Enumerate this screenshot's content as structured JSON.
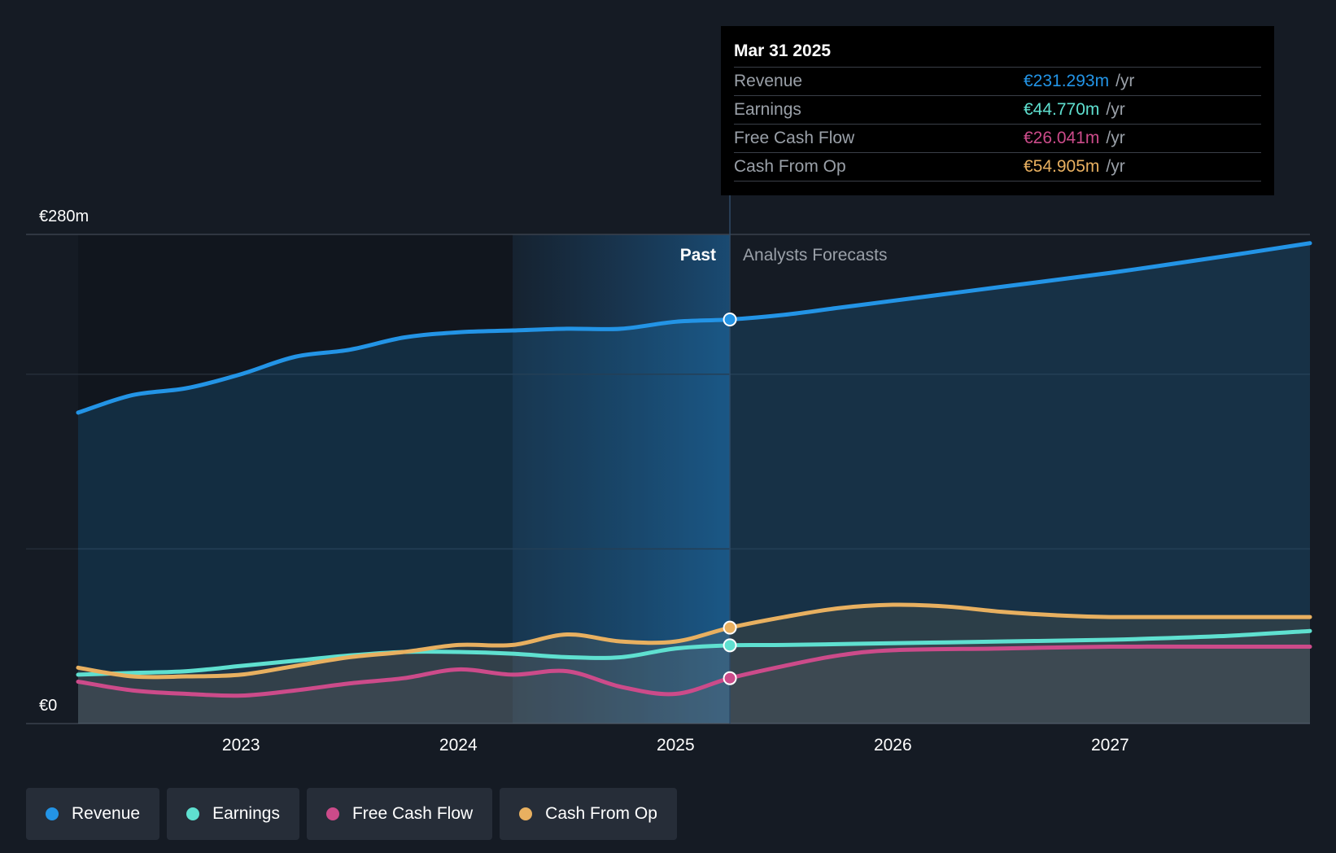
{
  "chart_data": {
    "type": "area",
    "x_unit": "year",
    "xlim": [
      2022.25,
      2027.92
    ],
    "ylim": [
      0,
      280
    ],
    "y_tick_labels": {
      "top": "€280m",
      "bottom": "€0"
    },
    "x_ticks": [
      2023,
      2024,
      2025,
      2026,
      2027
    ],
    "x_tick_labels": [
      "2023",
      "2024",
      "2025",
      "2026",
      "2027"
    ],
    "past_start": 2024.25,
    "divider_x": 2025.25,
    "past_label": "Past",
    "forecast_label": "Analysts Forecasts",
    "series": [
      {
        "name": "Revenue",
        "color": "#2394e6",
        "x": [
          2022.25,
          2022.5,
          2022.75,
          2023.0,
          2023.25,
          2023.5,
          2023.75,
          2024.0,
          2024.25,
          2024.5,
          2024.75,
          2025.0,
          2025.25,
          2025.5,
          2025.75,
          2026.0,
          2026.5,
          2027.0,
          2027.5,
          2027.92
        ],
        "y": [
          178,
          188,
          192,
          200,
          210,
          214,
          221,
          224,
          225,
          226,
          226,
          230,
          231.3,
          234,
          238,
          242,
          250,
          258,
          267,
          275
        ]
      },
      {
        "name": "Earnings",
        "color": "#5fe0d0",
        "x": [
          2022.25,
          2022.5,
          2022.75,
          2023.0,
          2023.25,
          2023.5,
          2023.75,
          2024.0,
          2024.25,
          2024.5,
          2024.75,
          2025.0,
          2025.25,
          2025.5,
          2026.0,
          2026.5,
          2027.0,
          2027.5,
          2027.92
        ],
        "y": [
          28,
          29,
          30,
          33,
          36,
          39,
          41,
          41,
          40,
          38,
          38,
          43,
          44.8,
          45,
          46,
          47,
          48,
          50,
          53
        ]
      },
      {
        "name": "Free Cash Flow",
        "color": "#cc4b8a",
        "x": [
          2022.25,
          2022.5,
          2022.75,
          2023.0,
          2023.25,
          2023.5,
          2023.75,
          2024.0,
          2024.25,
          2024.5,
          2024.75,
          2025.0,
          2025.25,
          2025.5,
          2025.75,
          2026.0,
          2026.5,
          2027.0,
          2027.5,
          2027.92
        ],
        "y": [
          24,
          19,
          17,
          16,
          19,
          23,
          26,
          31,
          28,
          30,
          21,
          17,
          26,
          33,
          39,
          42,
          43,
          44,
          44,
          44
        ]
      },
      {
        "name": "Cash From Op",
        "color": "#e8b060",
        "x": [
          2022.25,
          2022.5,
          2022.75,
          2023.0,
          2023.25,
          2023.5,
          2023.75,
          2024.0,
          2024.25,
          2024.5,
          2024.75,
          2025.0,
          2025.25,
          2025.5,
          2025.75,
          2026.0,
          2026.25,
          2026.5,
          2026.75,
          2027.0,
          2027.5,
          2027.92
        ],
        "y": [
          32,
          27,
          27,
          28,
          33,
          38,
          41,
          45,
          45,
          51,
          47,
          47,
          54.9,
          61,
          66,
          68,
          67,
          64,
          62,
          61,
          61,
          61
        ]
      }
    ],
    "highlight_x": 2025.25
  },
  "tooltip": {
    "date": "Mar 31 2025",
    "unit": "/yr",
    "rows": [
      {
        "label": "Revenue",
        "value": "€231.293m",
        "color": "#2394e6"
      },
      {
        "label": "Earnings",
        "value": "€44.770m",
        "color": "#5fe0d0"
      },
      {
        "label": "Free Cash Flow",
        "value": "€26.041m",
        "color": "#cc4b8a"
      },
      {
        "label": "Cash From Op",
        "value": "€54.905m",
        "color": "#e8b060"
      }
    ]
  },
  "legend": [
    {
      "label": "Revenue",
      "color": "#2394e6"
    },
    {
      "label": "Earnings",
      "color": "#5fe0d0"
    },
    {
      "label": "Free Cash Flow",
      "color": "#cc4b8a"
    },
    {
      "label": "Cash From Op",
      "color": "#e8b060"
    }
  ]
}
